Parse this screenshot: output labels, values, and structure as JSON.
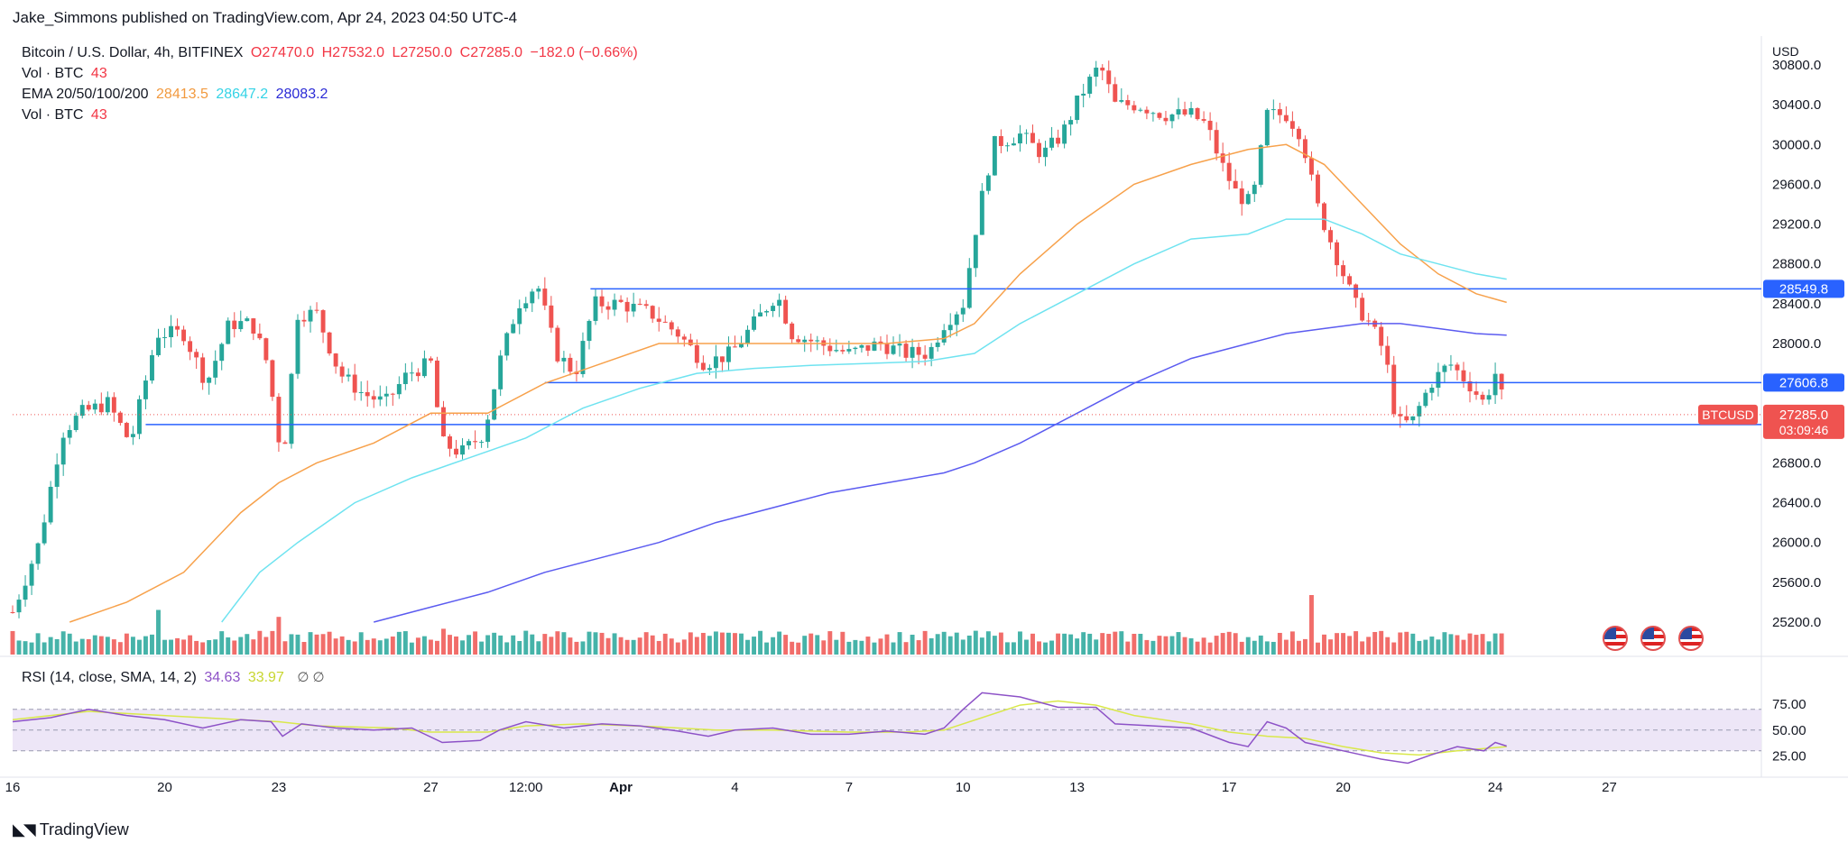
{
  "attribution": "Jake_Simmons published on TradingView.com, Apr 24, 2023 04:50 UTC-4",
  "brand": "TradingView",
  "legend": {
    "symbol": "Bitcoin / U.S. Dollar, 4h, BITFINEX",
    "open": "O27470.0",
    "high": "H27532.0",
    "low": "L27250.0",
    "close": "C27285.0",
    "change": "−182.0 (−0.66%)",
    "vol_label": "Vol · BTC",
    "vol_value": "43",
    "ema_label": "EMA 20/50/100/200",
    "ema20": "28413.5",
    "ema50": "28647.2",
    "ema100": "28083.2",
    "vol2_label": "Vol · BTC",
    "vol2_value": "43",
    "rsi_label": "RSI (14, close, SMA, 14, 2)",
    "rsi_value": "34.63",
    "rsi_sma_value": "33.97",
    "rsi_icons": "∅ ∅"
  },
  "colors": {
    "up": "#26a69a",
    "down": "#ef5350",
    "ema20": "#f7a14b",
    "ema50": "#6fe3f0",
    "ema100": "#5b5bf0",
    "hline": "#2962ff",
    "rsi": "#8d52c7",
    "rsi_sma": "#d9e84a",
    "rsi_band": "#ede6f7"
  },
  "chart_data": {
    "type": "candlestick",
    "currency_label": "USD",
    "price_axis_ticks": [
      25200,
      25600,
      26000,
      26400,
      26800,
      27200,
      27600,
      28000,
      28400,
      28800,
      29200,
      29600,
      30000,
      30400,
      30800
    ],
    "ylim": [
      25200,
      30800
    ],
    "x_axis_ticks": [
      {
        "label": "16",
        "t": 0
      },
      {
        "label": "20",
        "t": 4
      },
      {
        "label": "23",
        "t": 7
      },
      {
        "label": "27",
        "t": 11
      },
      {
        "label": "12:00",
        "t": 13.5
      },
      {
        "label": "Apr",
        "t": 16
      },
      {
        "label": "4",
        "t": 19
      },
      {
        "label": "7",
        "t": 22
      },
      {
        "label": "10",
        "t": 25
      },
      {
        "label": "13",
        "t": 28
      },
      {
        "label": "17",
        "t": 32
      },
      {
        "label": "20",
        "t": 35
      },
      {
        "label": "24",
        "t": 39
      },
      {
        "label": "27",
        "t": 42
      }
    ],
    "xlim": [
      0,
      46
    ],
    "keypoints": [
      {
        "t": 0,
        "p": 25300
      },
      {
        "t": 0.7,
        "p": 26000
      },
      {
        "t": 1.3,
        "p": 27100
      },
      {
        "t": 1.8,
        "p": 27300
      },
      {
        "t": 2.5,
        "p": 27400
      },
      {
        "t": 3.1,
        "p": 27000
      },
      {
        "t": 3.8,
        "p": 28100
      },
      {
        "t": 4.5,
        "p": 28100
      },
      {
        "t": 5.1,
        "p": 27600
      },
      {
        "t": 5.7,
        "p": 28200
      },
      {
        "t": 6.3,
        "p": 28200
      },
      {
        "t": 6.7,
        "p": 27800
      },
      {
        "t": 7.1,
        "p": 26800
      },
      {
        "t": 7.5,
        "p": 28300
      },
      {
        "t": 8.0,
        "p": 28300
      },
      {
        "t": 8.6,
        "p": 27700
      },
      {
        "t": 9.2,
        "p": 27500
      },
      {
        "t": 9.8,
        "p": 27400
      },
      {
        "t": 10.4,
        "p": 27700
      },
      {
        "t": 11.0,
        "p": 27800
      },
      {
        "t": 11.3,
        "p": 27000
      },
      {
        "t": 11.8,
        "p": 26900
      },
      {
        "t": 12.4,
        "p": 27100
      },
      {
        "t": 12.8,
        "p": 27800
      },
      {
        "t": 13.3,
        "p": 28400
      },
      {
        "t": 13.8,
        "p": 28600
      },
      {
        "t": 14.3,
        "p": 27900
      },
      {
        "t": 14.8,
        "p": 27700
      },
      {
        "t": 15.3,
        "p": 28400
      },
      {
        "t": 16.0,
        "p": 28400
      },
      {
        "t": 16.8,
        "p": 28300
      },
      {
        "t": 17.5,
        "p": 28100
      },
      {
        "t": 18.2,
        "p": 27800
      },
      {
        "t": 18.9,
        "p": 27900
      },
      {
        "t": 19.5,
        "p": 28200
      },
      {
        "t": 20.1,
        "p": 28500
      },
      {
        "t": 20.5,
        "p": 28100
      },
      {
        "t": 21.2,
        "p": 28000
      },
      {
        "t": 22.0,
        "p": 27900
      },
      {
        "t": 22.8,
        "p": 28000
      },
      {
        "t": 23.5,
        "p": 27900
      },
      {
        "t": 24.1,
        "p": 27900
      },
      {
        "t": 24.5,
        "p": 28200
      },
      {
        "t": 25.0,
        "p": 28400
      },
      {
        "t": 25.4,
        "p": 29300
      },
      {
        "t": 25.8,
        "p": 30000
      },
      {
        "t": 26.5,
        "p": 30100
      },
      {
        "t": 27.1,
        "p": 29900
      },
      {
        "t": 27.6,
        "p": 30100
      },
      {
        "t": 28.1,
        "p": 30500
      },
      {
        "t": 28.6,
        "p": 30800
      },
      {
        "t": 29.0,
        "p": 30400
      },
      {
        "t": 29.6,
        "p": 30400
      },
      {
        "t": 30.3,
        "p": 30300
      },
      {
        "t": 31.0,
        "p": 30300
      },
      {
        "t": 31.4,
        "p": 30200
      },
      {
        "t": 31.8,
        "p": 29800
      },
      {
        "t": 32.2,
        "p": 29500
      },
      {
        "t": 32.6,
        "p": 29400
      },
      {
        "t": 33.0,
        "p": 30300
      },
      {
        "t": 33.5,
        "p": 30300
      },
      {
        "t": 33.9,
        "p": 30100
      },
      {
        "t": 34.3,
        "p": 29400
      },
      {
        "t": 34.8,
        "p": 28900
      },
      {
        "t": 35.3,
        "p": 28400
      },
      {
        "t": 35.7,
        "p": 28200
      },
      {
        "t": 36.1,
        "p": 27900
      },
      {
        "t": 36.4,
        "p": 27200
      },
      {
        "t": 36.8,
        "p": 27200
      },
      {
        "t": 37.3,
        "p": 27600
      },
      {
        "t": 37.8,
        "p": 27800
      },
      {
        "t": 38.3,
        "p": 27600
      },
      {
        "t": 38.7,
        "p": 27400
      },
      {
        "t": 39.0,
        "p": 27700
      },
      {
        "t": 39.3,
        "p": 27285
      }
    ],
    "ema20": [
      [
        1.5,
        25200
      ],
      [
        3,
        25400
      ],
      [
        4.5,
        25700
      ],
      [
        6,
        26300
      ],
      [
        7,
        26600
      ],
      [
        8,
        26800
      ],
      [
        9.5,
        27000
      ],
      [
        11,
        27300
      ],
      [
        12.5,
        27300
      ],
      [
        14,
        27600
      ],
      [
        15.5,
        27800
      ],
      [
        17,
        28000
      ],
      [
        18.5,
        28000
      ],
      [
        20,
        28000
      ],
      [
        21.5,
        28000
      ],
      [
        23,
        28000
      ],
      [
        24.5,
        28050
      ],
      [
        25.3,
        28200
      ],
      [
        26.5,
        28700
      ],
      [
        28,
        29200
      ],
      [
        29.5,
        29600
      ],
      [
        31,
        29800
      ],
      [
        32.5,
        29950
      ],
      [
        33.5,
        30000
      ],
      [
        34.5,
        29800
      ],
      [
        35.5,
        29400
      ],
      [
        36.5,
        29000
      ],
      [
        37.5,
        28700
      ],
      [
        38.5,
        28500
      ],
      [
        39.3,
        28413
      ]
    ],
    "ema50": [
      [
        5.5,
        25200
      ],
      [
        6.5,
        25700
      ],
      [
        7.5,
        26000
      ],
      [
        9,
        26400
      ],
      [
        10.5,
        26650
      ],
      [
        12,
        26850
      ],
      [
        13.5,
        27050
      ],
      [
        15,
        27350
      ],
      [
        16.5,
        27550
      ],
      [
        18,
        27700
      ],
      [
        19.5,
        27750
      ],
      [
        21,
        27780
      ],
      [
        22.5,
        27800
      ],
      [
        24,
        27820
      ],
      [
        25.3,
        27900
      ],
      [
        26.5,
        28200
      ],
      [
        28,
        28500
      ],
      [
        29.5,
        28800
      ],
      [
        31,
        29050
      ],
      [
        32.5,
        29100
      ],
      [
        33.5,
        29250
      ],
      [
        34.5,
        29250
      ],
      [
        35.5,
        29100
      ],
      [
        36.5,
        28900
      ],
      [
        37.5,
        28800
      ],
      [
        38.5,
        28700
      ],
      [
        39.3,
        28647
      ]
    ],
    "ema100": [
      [
        9.5,
        25200
      ],
      [
        11,
        25350
      ],
      [
        12.5,
        25500
      ],
      [
        14,
        25700
      ],
      [
        15.5,
        25850
      ],
      [
        17,
        26000
      ],
      [
        18.5,
        26200
      ],
      [
        20,
        26350
      ],
      [
        21.5,
        26500
      ],
      [
        23,
        26600
      ],
      [
        24.5,
        26700
      ],
      [
        25.3,
        26800
      ],
      [
        26.5,
        27000
      ],
      [
        28,
        27300
      ],
      [
        29.5,
        27600
      ],
      [
        31,
        27850
      ],
      [
        32.5,
        28000
      ],
      [
        33.5,
        28100
      ],
      [
        34.5,
        28150
      ],
      [
        35.5,
        28200
      ],
      [
        36.5,
        28200
      ],
      [
        37.5,
        28150
      ],
      [
        38.5,
        28100
      ],
      [
        39.3,
        28083
      ]
    ],
    "hlines": [
      {
        "price": 28549.8,
        "t_start": 15.2,
        "label": "28549.8"
      },
      {
        "price": 27606.8,
        "t_start": 14.0,
        "label": "27606.8"
      },
      {
        "price": 27186.1,
        "t_start": 3.5,
        "label": "27186.1"
      }
    ],
    "last_price": {
      "label": "BTCUSD",
      "value": "27285.0",
      "countdown": "03:09:46",
      "price": 27285
    },
    "volume_peaks": [
      [
        3.8,
        0.45
      ],
      [
        7.0,
        0.38
      ],
      [
        11.3,
        0.26
      ],
      [
        13.5,
        0.24
      ],
      [
        18.8,
        0.22
      ],
      [
        25.3,
        0.24
      ],
      [
        34.1,
        0.6
      ]
    ],
    "rsi": {
      "ticks": [
        25,
        50,
        75
      ],
      "tick_labels": [
        "25.00",
        "50.00",
        "75.00"
      ],
      "band": [
        30,
        70
      ],
      "ylim": [
        15,
        95
      ],
      "series": [
        [
          0,
          58
        ],
        [
          1,
          62
        ],
        [
          2,
          70
        ],
        [
          3,
          64
        ],
        [
          4,
          60
        ],
        [
          5,
          52
        ],
        [
          6,
          60
        ],
        [
          6.8,
          58
        ],
        [
          7.1,
          44
        ],
        [
          7.6,
          56
        ],
        [
          8.5,
          52
        ],
        [
          9.5,
          50
        ],
        [
          10.5,
          52
        ],
        [
          11.3,
          38
        ],
        [
          12.3,
          40
        ],
        [
          12.8,
          50
        ],
        [
          13.5,
          58
        ],
        [
          14.5,
          52
        ],
        [
          15.5,
          56
        ],
        [
          16.5,
          54
        ],
        [
          17.5,
          49
        ],
        [
          18.3,
          44
        ],
        [
          19,
          50
        ],
        [
          20,
          52
        ],
        [
          21,
          46
        ],
        [
          22,
          46
        ],
        [
          23,
          49
        ],
        [
          24,
          46
        ],
        [
          24.5,
          52
        ],
        [
          25,
          70
        ],
        [
          25.5,
          86
        ],
        [
          26.5,
          82
        ],
        [
          27.5,
          72
        ],
        [
          28.5,
          72
        ],
        [
          29,
          56
        ],
        [
          30,
          54
        ],
        [
          31,
          52
        ],
        [
          32,
          38
        ],
        [
          32.5,
          34
        ],
        [
          33,
          58
        ],
        [
          33.5,
          52
        ],
        [
          34,
          38
        ],
        [
          35,
          30
        ],
        [
          36,
          22
        ],
        [
          36.7,
          18
        ],
        [
          37.3,
          26
        ],
        [
          38,
          34
        ],
        [
          38.7,
          30
        ],
        [
          39.0,
          38
        ],
        [
          39.3,
          34.6
        ]
      ],
      "sma": [
        [
          0,
          60
        ],
        [
          2,
          68
        ],
        [
          3,
          66
        ],
        [
          5,
          62
        ],
        [
          7,
          58
        ],
        [
          8,
          54
        ],
        [
          10,
          52
        ],
        [
          11,
          48
        ],
        [
          12.5,
          48
        ],
        [
          13.5,
          54
        ],
        [
          15,
          56
        ],
        [
          17,
          53
        ],
        [
          18.5,
          50
        ],
        [
          20,
          50
        ],
        [
          22,
          48
        ],
        [
          23.5,
          48
        ],
        [
          24.5,
          50
        ],
        [
          25.5,
          62
        ],
        [
          26.5,
          74
        ],
        [
          27.5,
          78
        ],
        [
          28.5,
          74
        ],
        [
          29.5,
          64
        ],
        [
          31,
          56
        ],
        [
          32,
          48
        ],
        [
          33,
          44
        ],
        [
          34,
          42
        ],
        [
          35,
          34
        ],
        [
          36,
          28
        ],
        [
          37,
          26
        ],
        [
          38,
          30
        ],
        [
          39.3,
          34
        ]
      ]
    }
  }
}
